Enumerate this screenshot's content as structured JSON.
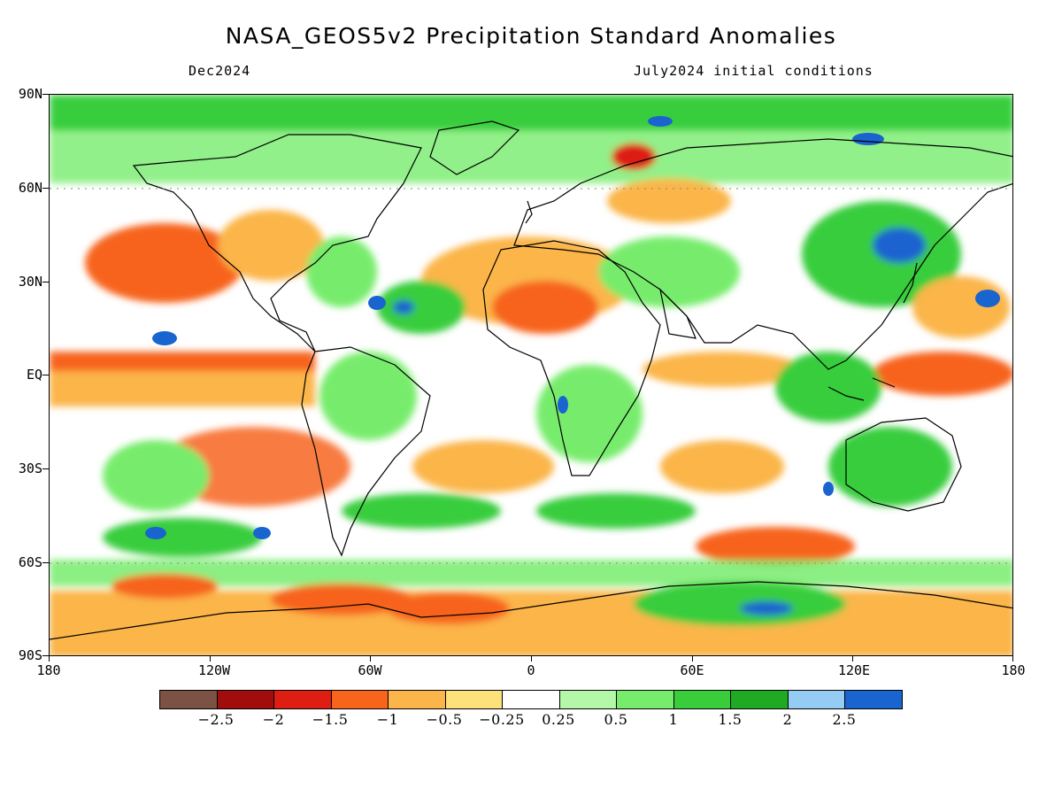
{
  "title": "NASA_GEOS5v2 Precipitation Standard Anomalies",
  "subtitle_left": "Dec2024",
  "subtitle_right": "July2024 initial conditions",
  "lat_labels": [
    "90N",
    "60N",
    "30N",
    "EQ",
    "30S",
    "60S",
    "90S"
  ],
  "lon_labels": [
    "180",
    "120W",
    "60W",
    "0",
    "60E",
    "120E",
    "180"
  ],
  "colorbar": {
    "colors": [
      "#7b5244",
      "#a10c0c",
      "#de1e12",
      "#f7641c",
      "#fbb54a",
      "#fde17a",
      "#ffffff",
      "#b5f7a8",
      "#77ec6c",
      "#39cd3c",
      "#20aa24",
      "#94ccf4",
      "#1a64d0"
    ],
    "labels": [
      "−2.5",
      "−2",
      "−1.5",
      "−1",
      "−0.5",
      "−0.25",
      "0.25",
      "0.5",
      "1",
      "1.5",
      "2",
      "2.5"
    ]
  }
}
